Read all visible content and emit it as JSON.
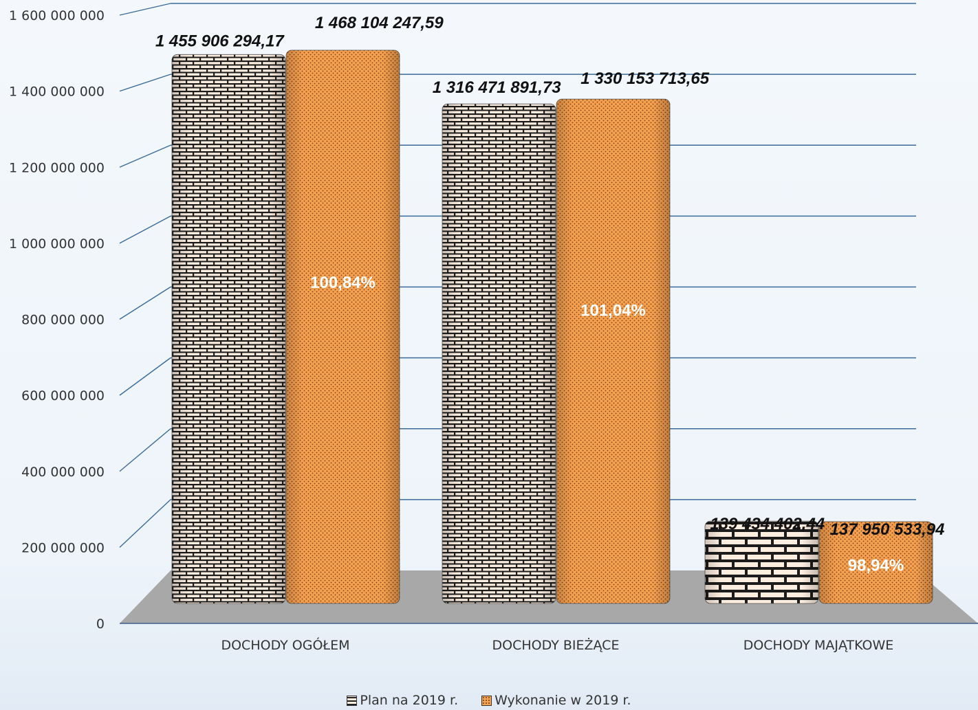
{
  "chart_data": {
    "type": "bar",
    "title": "",
    "xlabel": "",
    "ylabel": "",
    "ylim": [
      0,
      1600000000
    ],
    "yticks": [
      "0",
      "200 000 000",
      "400 000 000",
      "600 000 000",
      "800 000 000",
      "1 000 000 000",
      "1 200 000 000",
      "1 400 000 000",
      "1 600 000 000"
    ],
    "categories": [
      "DOCHODY OGÓŁEM",
      "DOCHODY BIEŻĄCE",
      "DOCHODY MAJĄTKOWE"
    ],
    "series": [
      {
        "name": "Plan na 2019 r.",
        "values": [
          1455906294.17,
          1316471891.73,
          139434402.44
        ],
        "labels": [
          "1 455 906 294,17",
          "1 316 471 891,73",
          "139 434 402,44"
        ],
        "color": "#fdeee0"
      },
      {
        "name": "Wykonanie w  2019 r.",
        "values": [
          1468104247.59,
          1330153713.65,
          137950533.94
        ],
        "labels": [
          "1 468 104 247,59",
          "1 330 153 713,65",
          "137 950 533,94"
        ],
        "percent_labels": [
          "100,84%",
          "101,04%",
          "98,94%"
        ],
        "color": "#f5a455"
      }
    ],
    "grid": true,
    "legend": "bottom"
  }
}
